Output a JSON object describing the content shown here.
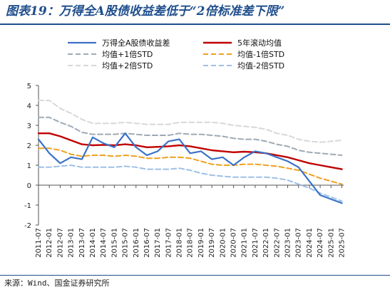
{
  "figure": {
    "title": "图表19：万得全A股债收益差低于“2倍标准差下限”",
    "source": "来源：Wind、国金证券研究所"
  },
  "chart_data": {
    "type": "line",
    "title": "",
    "xlabel": "",
    "ylabel": "",
    "ylim": [
      -2,
      5
    ],
    "yticks": [
      "5",
      "4",
      "3",
      "2",
      "1",
      "0",
      "-1",
      "-2"
    ],
    "xlim": [
      "2011-07",
      "2025-08"
    ],
    "xticks": [
      "2011-07",
      "2012-01",
      "2012-07",
      "2013-01",
      "2013-07",
      "2014-01",
      "2014-07",
      "2015-01",
      "2015-07",
      "2016-01",
      "2016-07",
      "2017-01",
      "2017-07",
      "2018-01",
      "2018-07",
      "2019-01",
      "2019-07",
      "2020-01",
      "2020-07",
      "2021-01",
      "2021-07",
      "2022-01",
      "2022-07",
      "2023-01",
      "2023-07",
      "2024-01",
      "2024-07",
      "2025-01",
      "2025-07"
    ],
    "grid": false,
    "legend_position": "top",
    "x": [
      "2011-07",
      "2012-01",
      "2012-07",
      "2013-01",
      "2013-07",
      "2014-01",
      "2014-07",
      "2015-01",
      "2015-07",
      "2016-01",
      "2016-07",
      "2017-01",
      "2017-07",
      "2018-01",
      "2018-07",
      "2019-01",
      "2019-07",
      "2020-01",
      "2020-07",
      "2021-01",
      "2021-07",
      "2022-01",
      "2022-07",
      "2023-01",
      "2023-07",
      "2024-01",
      "2024-07",
      "2025-01",
      "2025-07"
    ],
    "series": [
      {
        "name": "万得全A股债收益差",
        "color": "#3b72c6",
        "style": "solid",
        "width": 2.2,
        "values": [
          2.3,
          1.6,
          1.1,
          1.4,
          1.3,
          2.4,
          2.1,
          1.9,
          2.6,
          1.9,
          1.5,
          1.7,
          2.2,
          2.3,
          1.6,
          1.7,
          1.3,
          1.4,
          1.0,
          1.4,
          1.7,
          1.6,
          1.4,
          1.2,
          0.9,
          0.2,
          -0.5,
          -0.7,
          -0.9
        ]
      },
      {
        "name": "5年滚动均值",
        "color": "#c00000",
        "style": "solid",
        "width": 2.4,
        "values": [
          2.6,
          2.6,
          2.45,
          2.25,
          2.05,
          2.0,
          2.02,
          2.0,
          2.05,
          2.0,
          1.9,
          1.92,
          1.95,
          2.0,
          1.95,
          1.85,
          1.75,
          1.7,
          1.65,
          1.68,
          1.65,
          1.6,
          1.5,
          1.4,
          1.25,
          1.1,
          1.0,
          0.9,
          0.8
        ]
      },
      {
        "name": "均值+1倍STD",
        "color": "#9eaab5",
        "style": "dash",
        "width": 2.0,
        "values": [
          3.4,
          3.4,
          3.15,
          2.95,
          2.65,
          2.55,
          2.55,
          2.55,
          2.6,
          2.55,
          2.5,
          2.5,
          2.5,
          2.6,
          2.55,
          2.55,
          2.5,
          2.45,
          2.35,
          2.3,
          2.3,
          2.2,
          2.05,
          1.95,
          1.75,
          1.65,
          1.6,
          1.55,
          1.5
        ]
      },
      {
        "name": "均值-1倍STD",
        "color": "#f0a020",
        "style": "dash",
        "width": 2.0,
        "values": [
          1.85,
          1.85,
          1.75,
          1.55,
          1.45,
          1.5,
          1.5,
          1.45,
          1.5,
          1.45,
          1.35,
          1.35,
          1.4,
          1.4,
          1.35,
          1.2,
          1.05,
          1.0,
          1.0,
          1.05,
          1.05,
          1.0,
          0.95,
          0.85,
          0.75,
          0.55,
          0.35,
          0.2,
          0.05
        ]
      },
      {
        "name": "均值+2倍STD",
        "color": "#d8d8d8",
        "style": "dash",
        "width": 2.0,
        "values": [
          4.25,
          4.25,
          3.85,
          3.6,
          3.3,
          3.1,
          3.1,
          3.1,
          3.15,
          3.1,
          3.05,
          3.05,
          3.05,
          3.15,
          3.15,
          3.15,
          3.15,
          3.1,
          3.0,
          2.95,
          2.9,
          2.8,
          2.6,
          2.5,
          2.3,
          2.2,
          2.15,
          2.2,
          2.25
        ]
      },
      {
        "name": "均值-2倍STD",
        "color": "#9ec0e8",
        "style": "dash",
        "width": 2.0,
        "values": [
          0.9,
          0.9,
          0.95,
          1.0,
          0.9,
          0.9,
          0.9,
          0.9,
          0.95,
          0.9,
          0.8,
          0.8,
          0.8,
          0.85,
          0.75,
          0.6,
          0.5,
          0.45,
          0.4,
          0.4,
          0.4,
          0.4,
          0.35,
          0.25,
          0.05,
          -0.15,
          -0.4,
          -0.6,
          -0.8
        ]
      }
    ]
  }
}
